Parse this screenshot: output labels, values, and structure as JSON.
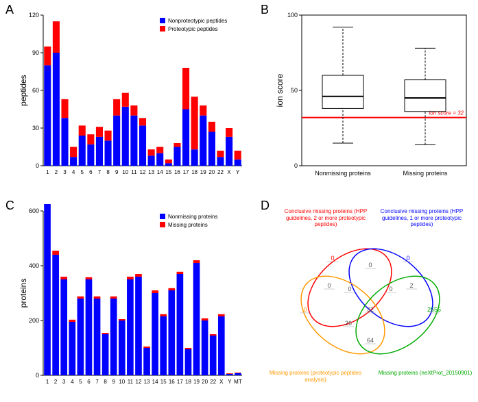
{
  "panelA": {
    "label": "A",
    "type": "stacked-bar",
    "ylabel": "peptides",
    "ylim": [
      0,
      120
    ],
    "ytick_step": 30,
    "categories": [
      "1",
      "2",
      "3",
      "4",
      "5",
      "6",
      "7",
      "8",
      "9",
      "10",
      "11",
      "12",
      "13",
      "14",
      "15",
      "16",
      "17",
      "18",
      "19",
      "20",
      "22",
      "X",
      "Y"
    ],
    "series": [
      {
        "name": "Nonproteotypic peptides",
        "color": "#0000ff",
        "values": [
          80,
          90,
          38,
          7,
          24,
          17,
          23,
          20,
          40,
          47,
          40,
          32,
          8,
          10,
          2,
          15,
          45,
          13,
          40,
          27,
          7,
          23,
          5
        ]
      },
      {
        "name": "Proteotypic peptides",
        "color": "#ff0000",
        "values": [
          15,
          25,
          15,
          8,
          8,
          8,
          8,
          8,
          13,
          11,
          8,
          6,
          5,
          5,
          3,
          3,
          33,
          42,
          8,
          8,
          5,
          7,
          7
        ]
      }
    ],
    "axis_color": "#000000",
    "tick_fontsize": 9
  },
  "panelB": {
    "label": "B",
    "type": "boxplot",
    "ylabel": "ion score",
    "ylim": [
      0,
      100
    ],
    "ytick_step": 50,
    "categories": [
      "Nonmissing proteins",
      "Missing proteins"
    ],
    "boxes": [
      {
        "q1": 38,
        "median": 46,
        "q3": 60,
        "whisker_low": 15,
        "whisker_high": 92
      },
      {
        "q1": 36,
        "median": 45,
        "q3": 57,
        "whisker_low": 14,
        "whisker_high": 78
      }
    ],
    "box_color": "#000000",
    "refline": {
      "value": 32,
      "color": "#ff0000",
      "label": "ion score = 32",
      "label_color": "#ff0000"
    },
    "axis_color": "#000000"
  },
  "panelC": {
    "label": "C",
    "type": "stacked-bar",
    "ylabel": "proteins",
    "ylim": [
      0,
      600
    ],
    "ytick_step": 200,
    "categories": [
      "1",
      "2",
      "3",
      "4",
      "5",
      "6",
      "7",
      "8",
      "9",
      "10",
      "11",
      "12",
      "13",
      "14",
      "15",
      "16",
      "17",
      "18",
      "19",
      "20",
      "22",
      "X",
      "Y",
      "MT"
    ],
    "series": [
      {
        "name": "Nonmissing proteins",
        "color": "#0000ff",
        "values": [
          640,
          440,
          350,
          195,
          280,
          350,
          280,
          150,
          280,
          200,
          350,
          360,
          100,
          300,
          215,
          310,
          370,
          95,
          410,
          200,
          145,
          215,
          5,
          8
        ]
      },
      {
        "name": "Missing proteins",
        "color": "#ff0000",
        "values": [
          15,
          15,
          10,
          8,
          8,
          8,
          8,
          5,
          8,
          5,
          10,
          10,
          5,
          10,
          8,
          8,
          8,
          5,
          10,
          8,
          5,
          8,
          2,
          2
        ]
      }
    ],
    "axis_color": "#000000"
  },
  "panelD": {
    "label": "D",
    "type": "venn",
    "sets": [
      {
        "name": "Conclusive missing proteins\n(HPP guidelines, 2 or more\nproteotypic peptides)",
        "color": "#ff0000"
      },
      {
        "name": "Conclusive missing proteins\n(HPP guidelines, 1 or more\nproteotypic peptides)",
        "color": "#0000ff"
      },
      {
        "name": "Missing proteins\n(proteotypic peptides analysis)",
        "color": "#ff9900"
      },
      {
        "name": "Missing proteins\n(neXtProt_20150901)",
        "color": "#00aa00"
      }
    ],
    "region_values": {
      "r_only": 0,
      "b_only": 0,
      "o_only": 0,
      "g_only": 2556,
      "rb": 0,
      "ro": 0,
      "bg": 2,
      "og": 64,
      "rbo": 0,
      "rbg": 0,
      "rog": 26,
      "bog": 0,
      "all": 32
    }
  }
}
